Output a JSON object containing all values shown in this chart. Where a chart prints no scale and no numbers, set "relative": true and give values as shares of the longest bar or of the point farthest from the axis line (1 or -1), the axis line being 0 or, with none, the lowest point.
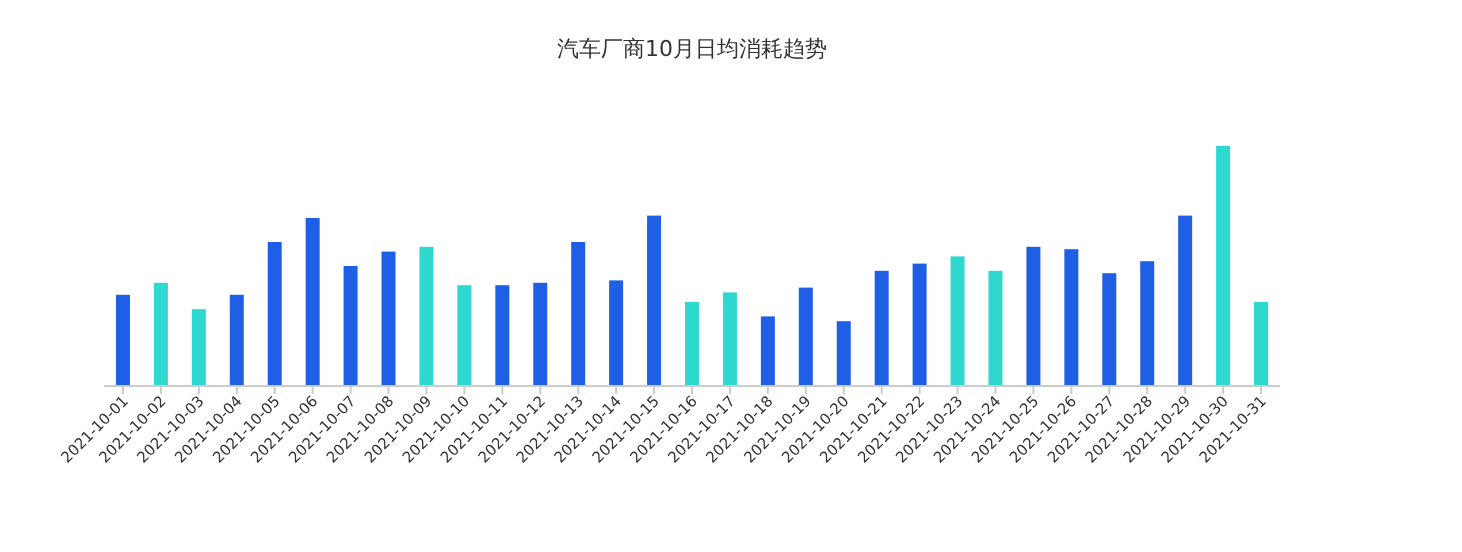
{
  "chart_data": {
    "type": "bar",
    "title": "汽车厂商10月日均消耗趋势",
    "relative": true,
    "categories": [
      "2021-10-01",
      "2021-10-02",
      "2021-10-03",
      "2021-10-04",
      "2021-10-05",
      "2021-10-06",
      "2021-10-07",
      "2021-10-08",
      "2021-10-09",
      "2021-10-10",
      "2021-10-11",
      "2021-10-12",
      "2021-10-13",
      "2021-10-14",
      "2021-10-15",
      "2021-10-16",
      "2021-10-17",
      "2021-10-18",
      "2021-10-19",
      "2021-10-20",
      "2021-10-21",
      "2021-10-22",
      "2021-10-23",
      "2021-10-24",
      "2021-10-25",
      "2021-10-26",
      "2021-10-27",
      "2021-10-28",
      "2021-10-29",
      "2021-10-30",
      "2021-10-31"
    ],
    "values": [
      0.38,
      0.43,
      0.32,
      0.38,
      0.6,
      0.7,
      0.5,
      0.56,
      0.58,
      0.42,
      0.42,
      0.43,
      0.6,
      0.44,
      0.71,
      0.35,
      0.39,
      0.29,
      0.41,
      0.27,
      0.48,
      0.51,
      0.54,
      0.48,
      0.58,
      0.57,
      0.47,
      0.52,
      0.71,
      1,
      0.35
    ],
    "colors": [
      "#1f5fe6",
      "#2fd9d0",
      "#2fd9d0",
      "#1f5fe6",
      "#1f5fe6",
      "#1f5fe6",
      "#1f5fe6",
      "#1f5fe6",
      "#2fd9d0",
      "#2fd9d0",
      "#1f5fe6",
      "#1f5fe6",
      "#1f5fe6",
      "#1f5fe6",
      "#1f5fe6",
      "#2fd9d0",
      "#2fd9d0",
      "#1f5fe6",
      "#1f5fe6",
      "#1f5fe6",
      "#1f5fe6",
      "#1f5fe6",
      "#2fd9d0",
      "#2fd9d0",
      "#1f5fe6",
      "#1f5fe6",
      "#1f5fe6",
      "#1f5fe6",
      "#1f5fe6",
      "#2fd9d0",
      "#2fd9d0"
    ]
  }
}
